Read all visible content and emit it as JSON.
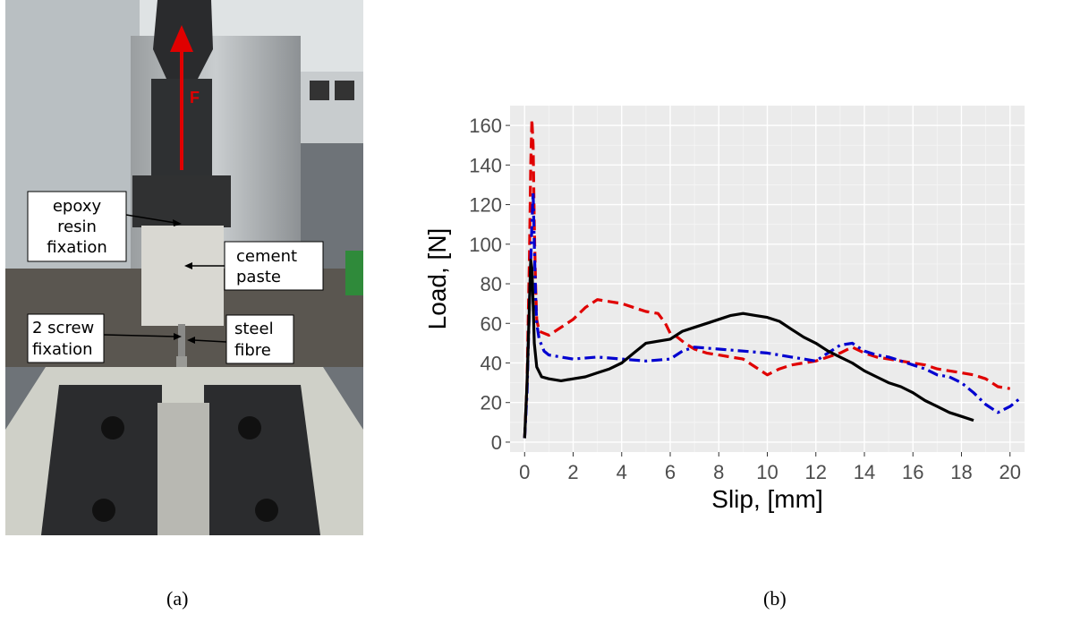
{
  "photo": {
    "force_label": "F",
    "annotations": {
      "epoxy": [
        "epoxy",
        "resin",
        "fixation"
      ],
      "cement": [
        "cement",
        "paste"
      ],
      "screw": [
        "2 screw",
        "fixation"
      ],
      "fibre": [
        "steel",
        "fibre"
      ]
    }
  },
  "captions": {
    "a": "(a)",
    "b": "(b)"
  },
  "chart_data": {
    "type": "line",
    "xlabel": "Slip, [mm]",
    "ylabel": "Load, [N]",
    "xlim": [
      -0.6,
      20.6
    ],
    "ylim": [
      -5,
      170
    ],
    "xticks": [
      0,
      2,
      4,
      6,
      8,
      10,
      12,
      14,
      16,
      18,
      20
    ],
    "yticks": [
      0,
      20,
      40,
      60,
      80,
      100,
      120,
      140,
      160
    ],
    "grid": true,
    "legend": "none",
    "series": [
      {
        "color": "#e00000",
        "dash": "dashed",
        "x": [
          0,
          0.1,
          0.2,
          0.25,
          0.3,
          0.35,
          0.4,
          0.45,
          0.5,
          0.6,
          0.8,
          1,
          1.5,
          2,
          2.5,
          3,
          3.5,
          4,
          4.5,
          5,
          5.5,
          5.8,
          6,
          6.3,
          6.6,
          7,
          7.5,
          8,
          8.5,
          9,
          9.5,
          10,
          10.5,
          11,
          11.5,
          12,
          12.5,
          13,
          13.5,
          14,
          14.5,
          15,
          15.5,
          16,
          16.5,
          17,
          17.5,
          18,
          18.5,
          19,
          19.5,
          20
        ],
        "y": [
          2,
          30,
          95,
          140,
          163,
          150,
          110,
          80,
          62,
          56,
          55,
          54,
          58,
          62,
          68,
          72,
          71,
          70,
          68,
          66,
          65,
          60,
          55,
          53,
          50,
          47,
          45,
          44,
          43,
          42,
          38,
          34,
          37,
          39,
          40,
          41,
          43,
          45,
          48,
          45,
          43,
          42,
          41,
          40,
          39,
          37,
          36,
          35,
          34,
          32,
          28,
          27
        ]
      },
      {
        "color": "#0000d0",
        "dash": "dashdot",
        "x": [
          0,
          0.1,
          0.2,
          0.3,
          0.35,
          0.4,
          0.45,
          0.5,
          0.6,
          0.8,
          1,
          1.5,
          2,
          3,
          4,
          5,
          6,
          6.5,
          7,
          8,
          9,
          10,
          11,
          12,
          12.5,
          13,
          13.5,
          14,
          14.5,
          15,
          15.5,
          16,
          16.5,
          17,
          17.5,
          18,
          18.5,
          19,
          19.5,
          20,
          20.4
        ],
        "y": [
          2,
          25,
          70,
          110,
          126,
          100,
          75,
          60,
          52,
          46,
          44,
          43,
          42,
          43,
          42,
          41,
          42,
          46,
          48,
          47,
          46,
          45,
          43,
          41,
          45,
          49,
          50,
          46,
          44,
          43,
          41,
          39,
          37,
          34,
          33,
          30,
          25,
          19,
          15,
          18,
          22
        ]
      },
      {
        "color": "#000000",
        "dash": "solid",
        "x": [
          0,
          0.1,
          0.2,
          0.25,
          0.3,
          0.35,
          0.4,
          0.5,
          0.7,
          1,
          1.5,
          2,
          2.5,
          3,
          3.5,
          4,
          4.5,
          5,
          5.5,
          6,
          6.5,
          7,
          7.5,
          8,
          8.5,
          9,
          9.5,
          10,
          10.5,
          11,
          11.5,
          12,
          12.5,
          13,
          13.5,
          14,
          14.5,
          15,
          15.5,
          16,
          16.5,
          17,
          17.5,
          18,
          18.5
        ],
        "y": [
          2,
          30,
          70,
          92,
          88,
          70,
          50,
          38,
          33,
          32,
          31,
          32,
          33,
          35,
          37,
          40,
          45,
          50,
          51,
          52,
          56,
          58,
          60,
          62,
          64,
          65,
          64,
          63,
          61,
          57,
          53,
          50,
          46,
          43,
          40,
          36,
          33,
          30,
          28,
          25,
          21,
          18,
          15,
          13,
          11
        ]
      }
    ]
  }
}
